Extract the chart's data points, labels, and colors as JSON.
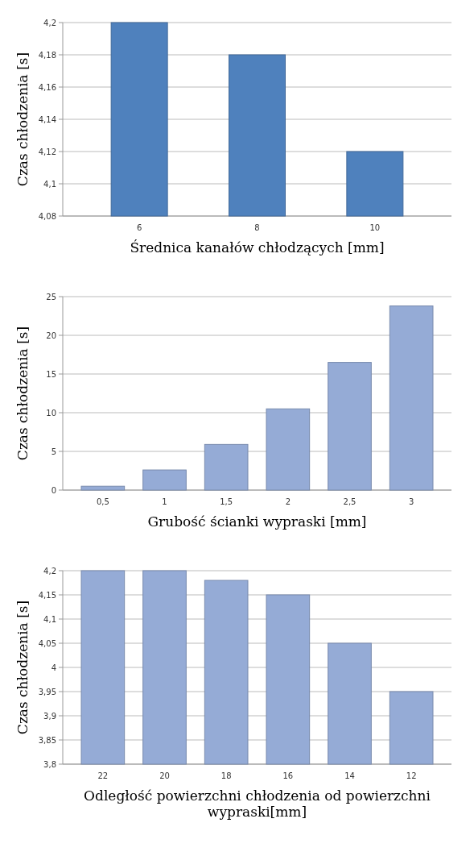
{
  "chart_data": [
    {
      "type": "bar",
      "xlabel": "Średnica kanałów chłodzących [mm]",
      "ylabel": "Czas chłodzenia [s]",
      "categories": [
        "6",
        "8",
        "10"
      ],
      "values": [
        4.2,
        4.18,
        4.12
      ],
      "color": "#4f81bd",
      "ylim": [
        4.08,
        4.2
      ],
      "yticks": [
        {
          "value": 4.08,
          "label": "4,08"
        },
        {
          "value": 4.1,
          "label": "4,1"
        },
        {
          "value": 4.12,
          "label": "4,12"
        },
        {
          "value": 4.14,
          "label": "4,14"
        },
        {
          "value": 4.16,
          "label": "4,16"
        },
        {
          "value": 4.18,
          "label": "4,18"
        },
        {
          "value": 4.2,
          "label": "4,2"
        }
      ],
      "grid": "y"
    },
    {
      "type": "bar",
      "xlabel": "Grubość ścianki wypraski [mm]",
      "ylabel": "Czas chłodzenia [s]",
      "categories": [
        "0,5",
        "1",
        "1,5",
        "2",
        "2,5",
        "3"
      ],
      "values": [
        0.5,
        2.6,
        5.9,
        10.5,
        16.5,
        23.8
      ],
      "color": "#95abd6",
      "ylim": [
        0,
        25
      ],
      "yticks": [
        0,
        5,
        10,
        15,
        20,
        25
      ],
      "grid": "y"
    },
    {
      "type": "bar",
      "xlabel": "Odległość powierzchni chłodzenia od powierzchni wypraski[mm]",
      "ylabel": "Czas chłodzenia [s]",
      "categories": [
        "22",
        "20",
        "18",
        "16",
        "14",
        "12"
      ],
      "values": [
        4.2,
        4.2,
        4.18,
        4.15,
        4.05,
        3.95
      ],
      "color": "#95abd6",
      "ylim": [
        3.8,
        4.2
      ],
      "yticks": [
        {
          "value": 3.8,
          "label": "3,8"
        },
        {
          "value": 3.85,
          "label": "3,85"
        },
        {
          "value": 3.9,
          "label": "3,9"
        },
        {
          "value": 3.95,
          "label": "3,95"
        },
        {
          "value": 4,
          "label": "4"
        },
        {
          "value": 4.05,
          "label": "4,05"
        },
        {
          "value": 4.1,
          "label": "4,1"
        },
        {
          "value": 4.15,
          "label": "4,15"
        },
        {
          "value": 4.2,
          "label": "4,2"
        }
      ],
      "grid": "y"
    }
  ]
}
